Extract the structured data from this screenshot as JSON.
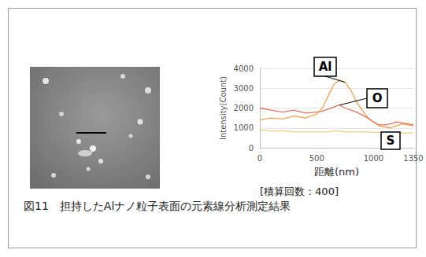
{
  "chart_data": {
    "type": "line",
    "x_label": "距離(nm)",
    "y_label": "Intensity(Count)",
    "note": "[積算回数：400]",
    "caption": "図11　担持したAlナノ粒子表面の元素線分析測定結果",
    "x": [
      0,
      100,
      200,
      300,
      400,
      500,
      550,
      600,
      650,
      700,
      750,
      800,
      850,
      900,
      950,
      1000,
      1050,
      1100,
      1150,
      1200,
      1250,
      1300,
      1350
    ],
    "series": [
      {
        "name": "Al",
        "color": "#f5a04a",
        "values": [
          1400,
          1500,
          1450,
          1600,
          1500,
          1700,
          2000,
          2600,
          3200,
          3400,
          3300,
          2900,
          2300,
          1900,
          1500,
          1300,
          1100,
          1050,
          1000,
          1100,
          1200,
          1150,
          1100
        ]
      },
      {
        "name": "O",
        "color": "#e8735a",
        "values": [
          2000,
          1900,
          1800,
          1900,
          1750,
          1800,
          1850,
          1950,
          2050,
          2150,
          2000,
          1900,
          1800,
          1650,
          1500,
          1300,
          1150,
          1150,
          1200,
          1300,
          1250,
          1200,
          1150
        ]
      },
      {
        "name": "S",
        "color": "#f7c97a",
        "values": [
          900,
          850,
          850,
          800,
          800,
          800,
          800,
          800,
          850,
          850,
          800,
          800,
          800,
          800,
          800,
          780,
          780,
          760,
          760,
          760,
          750,
          750,
          750
        ]
      }
    ],
    "xlim": [
      0,
      1350
    ],
    "xticks": [
      0,
      500,
      1000
    ],
    "ylim": [
      0,
      4000
    ],
    "yticks": [
      0,
      1000,
      2000,
      3000,
      4000
    ],
    "grid": true
  }
}
